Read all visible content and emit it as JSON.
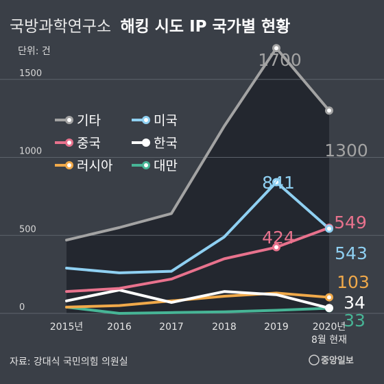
{
  "title_regular": "국방과학연구소",
  "title_bold": "해킹 시도 IP 국가별 현황",
  "unit": "단위: 건",
  "source": "자료: 강대식 국민의힘 의원실",
  "logo_text": "중앙일보",
  "colors": {
    "background": "#3a3f47",
    "area_fill": "#23272f",
    "기타": "#a3a3a3",
    "미국": "#8fd0f2",
    "중국": "#e8728d",
    "한국": "#ffffff",
    "러시아": "#f0a94a",
    "대만": "#47b596"
  },
  "chart_data": {
    "type": "line",
    "title": "국방과학연구소 해킹 시도 IP 국가별 현황",
    "ylabel": "단위: 건",
    "x": [
      "2015년",
      "2016",
      "2017",
      "2018",
      "2019",
      "2020년 8월 현재"
    ],
    "x_tick_lines": [
      [
        "2015년"
      ],
      [
        "2016"
      ],
      [
        "2017"
      ],
      [
        "2018"
      ],
      [
        "2019"
      ],
      [
        "2020년",
        "8월 현재"
      ]
    ],
    "ylim": [
      0,
      1800
    ],
    "yticks": [
      0,
      500,
      1000,
      1500
    ],
    "legend_position": "top-left",
    "series": [
      {
        "name": "기타",
        "values": [
          470,
          550,
          640,
          1200,
          1700,
          1300
        ],
        "labels": [
          null,
          null,
          null,
          null,
          "1700",
          "1300"
        ]
      },
      {
        "name": "미국",
        "values": [
          290,
          260,
          270,
          490,
          841,
          543
        ],
        "labels": [
          null,
          null,
          null,
          null,
          "841",
          "543"
        ]
      },
      {
        "name": "중국",
        "values": [
          140,
          160,
          220,
          350,
          424,
          549
        ],
        "labels": [
          null,
          null,
          null,
          null,
          "424",
          "549"
        ]
      },
      {
        "name": "한국",
        "values": [
          80,
          150,
          70,
          140,
          120,
          34
        ],
        "labels": [
          null,
          null,
          null,
          null,
          null,
          "34"
        ]
      },
      {
        "name": "러시아",
        "values": [
          40,
          50,
          80,
          110,
          130,
          103
        ],
        "labels": [
          null,
          null,
          null,
          null,
          null,
          "103"
        ]
      },
      {
        "name": "대만",
        "values": [
          40,
          0,
          5,
          10,
          20,
          33
        ],
        "labels": [
          null,
          null,
          null,
          null,
          null,
          "33"
        ]
      }
    ],
    "legend": [
      {
        "name": "기타",
        "col": 0,
        "row": 0
      },
      {
        "name": "미국",
        "col": 1,
        "row": 0
      },
      {
        "name": "중국",
        "col": 0,
        "row": 1
      },
      {
        "name": "한국",
        "col": 1,
        "row": 1
      },
      {
        "name": "러시아",
        "col": 0,
        "row": 2
      },
      {
        "name": "대만",
        "col": 1,
        "row": 2
      }
    ]
  }
}
